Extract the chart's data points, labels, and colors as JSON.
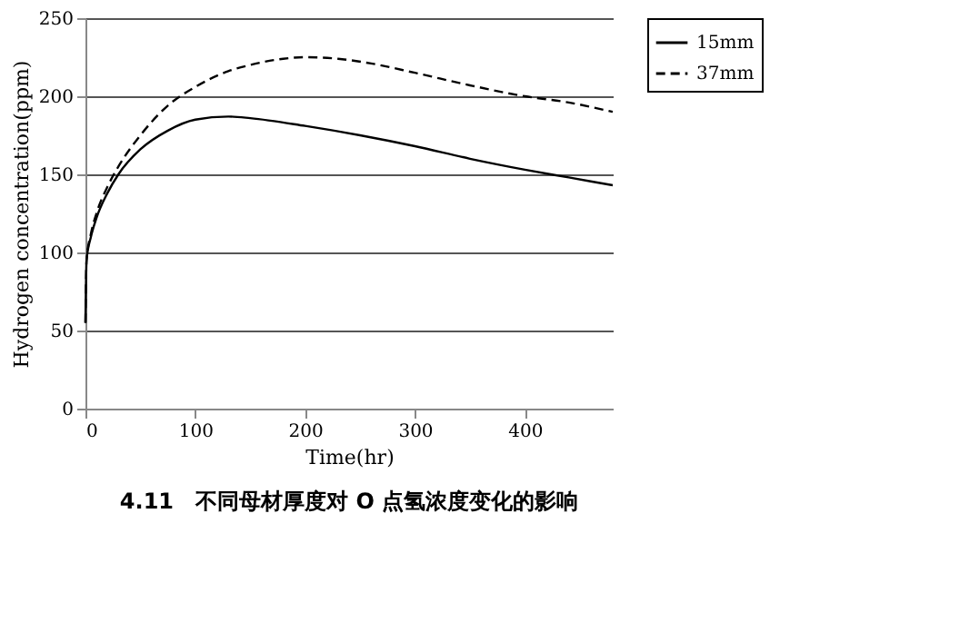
{
  "chart_data": {
    "type": "line",
    "title": "4.11　不同母材厚度对 O 点氢浓度变化的影响",
    "xlabel": "Time(hr)",
    "ylabel": "Hydrogen concentration(ppm)",
    "xlim": [
      0,
      480
    ],
    "xticks": [
      0,
      100,
      200,
      300,
      400
    ],
    "ylim": [
      0,
      250
    ],
    "yticks": [
      0,
      50,
      100,
      150,
      200,
      250
    ],
    "grid": "y",
    "legend": "right",
    "marker": "none",
    "series": [
      {
        "name": "15mm",
        "color": "#000000",
        "line_style": "solid",
        "x": [
          0,
          1,
          5,
          10,
          20,
          30,
          50,
          75,
          100,
          130,
          150,
          200,
          250,
          300,
          350,
          400,
          440,
          480
        ],
        "values": [
          55,
          95,
          110,
          122,
          138,
          150,
          166,
          178,
          185,
          187,
          186,
          181,
          175,
          168,
          160,
          153,
          148,
          143
        ]
      },
      {
        "name": "37mm",
        "color": "#000000",
        "line_style": "dashed",
        "x": [
          0,
          1,
          5,
          10,
          20,
          30,
          50,
          75,
          100,
          130,
          150,
          180,
          200,
          230,
          260,
          300,
          350,
          400,
          440,
          480
        ],
        "values": [
          55,
          95,
          112,
          125,
          142,
          155,
          175,
          194,
          206,
          216,
          220,
          224,
          225,
          224,
          221,
          215,
          207,
          200,
          196,
          190
        ]
      }
    ]
  }
}
